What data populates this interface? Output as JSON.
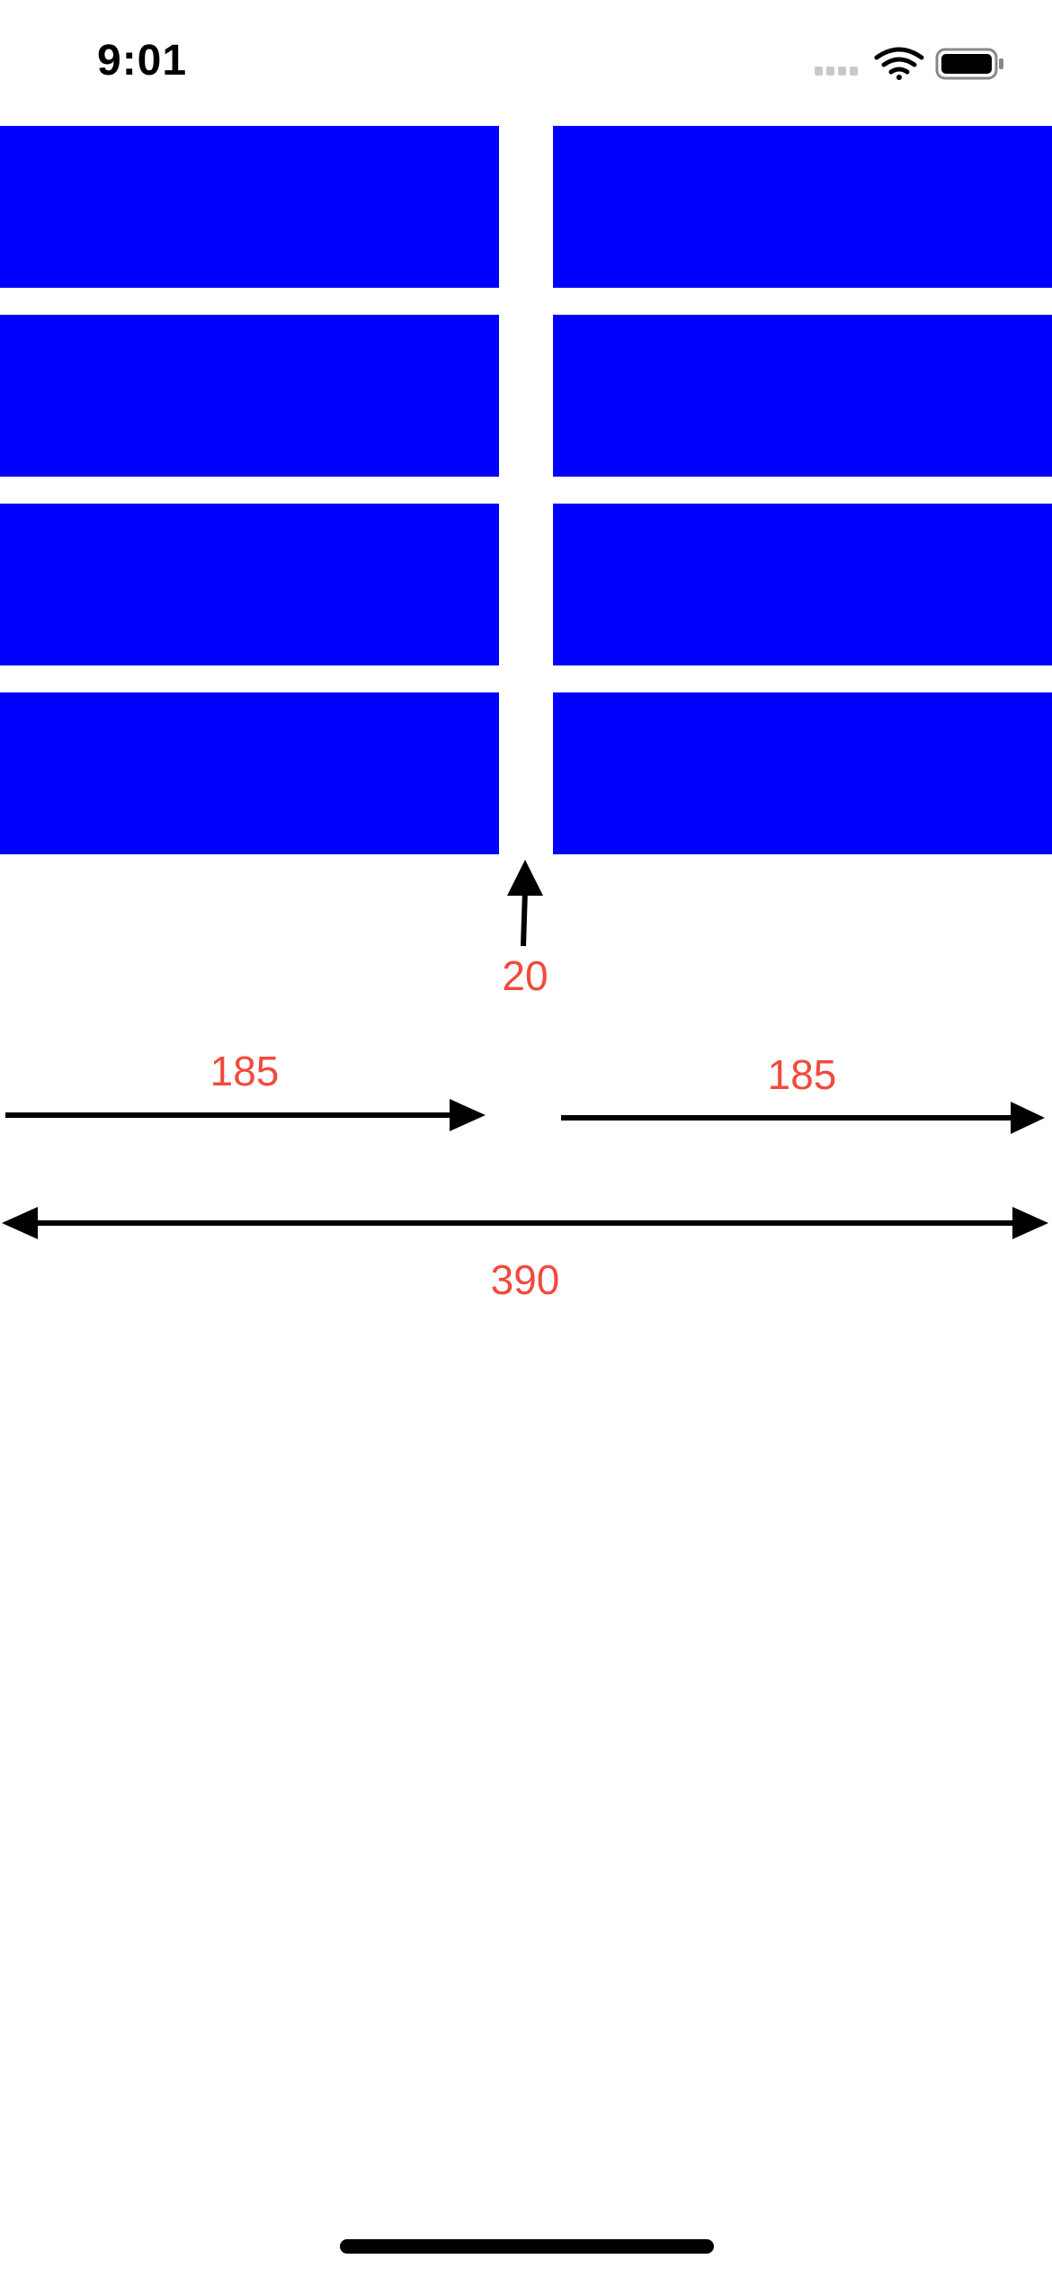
{
  "status_bar": {
    "time": "9:01",
    "icons": [
      "cellular-signal-icon",
      "wifi-icon",
      "battery-icon"
    ]
  },
  "grid": {
    "rows": 4,
    "columns": 2,
    "cell_color": "#0000ff",
    "cells": [
      {
        "row": 1,
        "column": 1
      },
      {
        "row": 1,
        "column": 2
      },
      {
        "row": 2,
        "column": 1
      },
      {
        "row": 2,
        "column": 2
      },
      {
        "row": 3,
        "column": 1
      },
      {
        "row": 3,
        "column": 2
      },
      {
        "row": 4,
        "column": 1
      },
      {
        "row": 4,
        "column": 2
      }
    ]
  },
  "annotations": {
    "gap_label": "20",
    "left_width_label": "185",
    "right_width_label": "185",
    "total_width_label": "390",
    "label_color": "#f24a3d",
    "arrow_color": "#000000"
  }
}
